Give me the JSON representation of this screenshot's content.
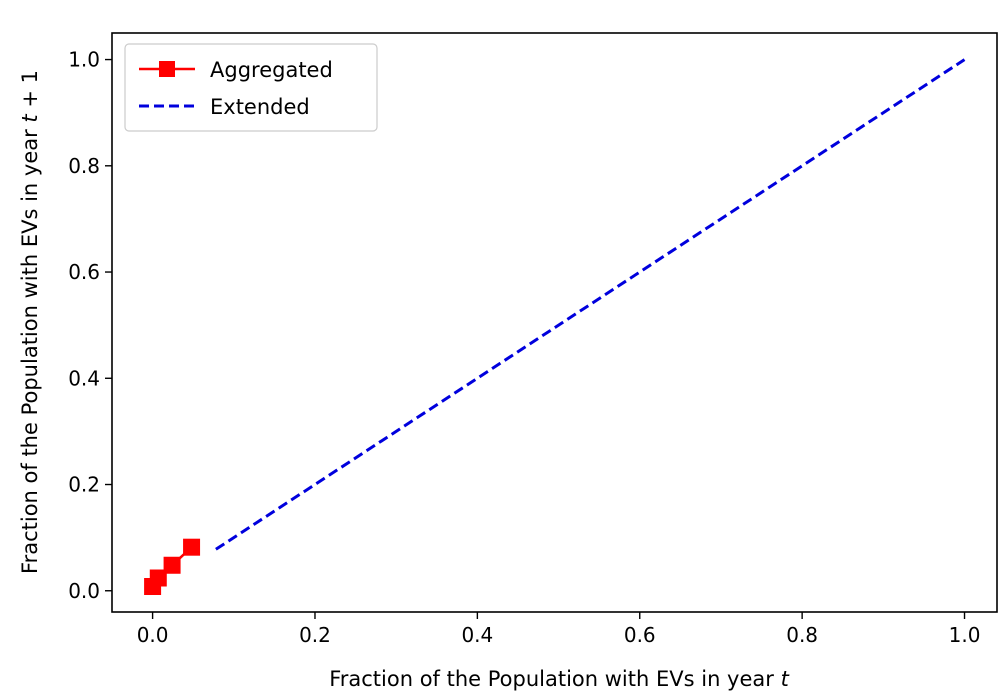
{
  "chart_data": {
    "type": "line",
    "xlabel": {
      "prefix": "Fraction of the Population with EVs in year ",
      "var": "t"
    },
    "ylabel": {
      "prefix": "Fraction of the Population with EVs in year ",
      "var": "t",
      "suffix": " + 1"
    },
    "xlim": [
      -0.05,
      1.04
    ],
    "ylim": [
      -0.04,
      1.05
    ],
    "xticks": [
      0.0,
      0.2,
      0.4,
      0.6,
      0.8,
      1.0
    ],
    "yticks": [
      0.0,
      0.2,
      0.4,
      0.6,
      0.8,
      1.0
    ],
    "xtick_labels": [
      "0.0",
      "0.2",
      "0.4",
      "0.6",
      "0.8",
      "1.0"
    ],
    "ytick_labels": [
      "0.0",
      "0.2",
      "0.4",
      "0.6",
      "0.8",
      "1.0"
    ],
    "grid": false,
    "legend_position": "top-left",
    "series": [
      {
        "name": "Aggregated",
        "style": "solid-square-markers",
        "color": "#ff0000",
        "x": [
          0.0,
          0.007,
          0.024,
          0.048
        ],
        "y": [
          0.008,
          0.024,
          0.048,
          0.082
        ]
      },
      {
        "name": "Extended",
        "style": "dashed",
        "color": "#0000dd",
        "x": [
          0.078,
          1.0
        ],
        "y": [
          0.078,
          1.0
        ]
      }
    ]
  }
}
